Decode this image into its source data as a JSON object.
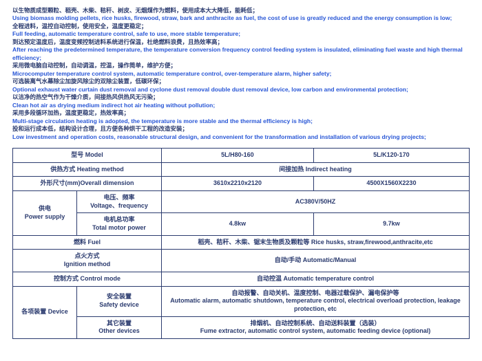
{
  "features": [
    {
      "cn": "以生物质成型颗粒、稻壳、木柴、秸秆、树皮、无烟煤作为燃料，使用成本大大降低，能耗低；",
      "en": "Using biomass molding pellets, rice husks, firewood, straw, bark and anthracite as fuel, the cost of use is greatly reduced and the energy consumption is low;"
    },
    {
      "cn": "全程进料，温控自动控制，使用安全，温度更稳定；",
      "en": "Full feeding, automatic temperature control, safe to use, more stable temperature;"
    },
    {
      "cn": "到达预定温度后，温度变频控制进料系统进行保温，杜绝燃料浪费，且热效率高；",
      "en": "After reaching the predetermined temperature, the temperature conversion frequency control feeding system is insulated, eliminating fuel waste and high thermal efficiency;"
    },
    {
      "cn": "采用微电脑自动控制，自动调温，控温，操作简单，维护方便；",
      "en": "Microcomputer temperature control system, automatic temperature control, over-temperature alarm, higher safety;"
    },
    {
      "cn": "可选装离气水幕除尘加旋风除尘的双除尘装置，低碳环保；",
      "en": "Optional exhaust water curtain dust removal and cyclone dust removal double dust removal device, low carbon and environmental protection;"
    },
    {
      "cn": "以洁净的热空气作为干燥介质，间接热风供热风无污染；",
      "en": "Clean hot air as drying medium indirect hot air heating without pollution;"
    },
    {
      "cn": "采用多段循环加热，温度更稳定，热效率高；",
      "en": "Multi-stage circulation heating is adopted, the temperature is more stable and the thermal efficiency is high;"
    },
    {
      "cn": "投和运行成本低，结构设计合理，且方便各种烘干工程的改造安装；",
      "en": "Low investment and operation costs, reasonable structural design, and convenient for the transformation and installation of various drying projects;"
    }
  ],
  "table": {
    "header": {
      "model": "型号    Model",
      "col1": "5L/H80-160",
      "col2": "5L/K120-170"
    },
    "heating": {
      "label": "供热方式   Heating method",
      "value": "间接加热        Indirect heating"
    },
    "dim": {
      "label": "外形尺寸(mm)Overall dimension",
      "v1": "3610x2210x2120",
      "v2": "4500X1560X2230"
    },
    "power": {
      "label": "供电\nPower supply",
      "row1": {
        "sub": "电压、频率\nVoltage、frequency",
        "val": "AC380V/50HZ"
      },
      "row2": {
        "sub": "电机总功率\nTotal motor power",
        "v1": "4.8kw",
        "v2": "9.7kw"
      }
    },
    "fuel": {
      "label": "燃料    Fuel",
      "value": "稻壳、秸秆、木柴、锯末生物质及颗粒等  Rice husks, straw,firewood,anthracite,etc"
    },
    "ignition": {
      "label": "点火方式\nIgnition method",
      "value": "自动/手动    Automatic/Manual"
    },
    "control": {
      "label": "控制方式  Control mode",
      "value": "自动控温        Automatic   temperature   control"
    },
    "device": {
      "label": "各项装置  Device",
      "row1": {
        "sub": "安全装置\nSafety device",
        "val": "自动报警、自动关机、温度控制、电器过载保护、漏电保护等\nAutomatic alarm, automatic shutdown, temperature control, electrical overload protection, leakage protection, etc"
      },
      "row2": {
        "sub": "其它装置\nOther devices",
        "val": "排烟机、自动控制系统、自动送料装置（选装）\nFume extractor, automatic control system, automatic feeding device (optional)"
      }
    }
  }
}
